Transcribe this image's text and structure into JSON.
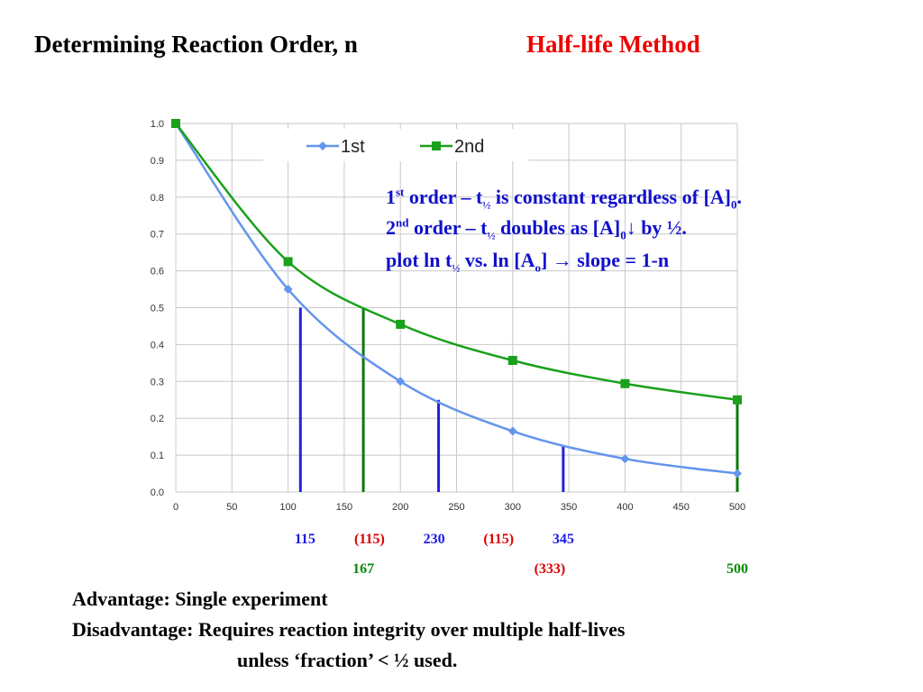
{
  "header": {
    "title": "Determining Reaction Order, n",
    "method": "Half-life Method"
  },
  "notes": {
    "line1": {
      "pre": "1",
      "sup": "st",
      "mid": " order – t",
      "half": "½",
      "post": " is constant regardless of [A]",
      "sub": "0",
      "end": "."
    },
    "line2": {
      "pre": "2",
      "sup": "nd",
      "mid": " order – t",
      "half": "½",
      "post": " doubles as [A]",
      "sub": "0",
      "end": "↓ by ½."
    },
    "line3": {
      "pre": "plot ln t",
      "half": "½",
      "mid": " vs. ln [A",
      "sub": "o",
      "post": "]  → slope = 1-n"
    }
  },
  "half_life_labels": {
    "first": [
      {
        "value": 115,
        "label": "115",
        "color": "blue"
      },
      {
        "value": 172.5,
        "label": "(115)",
        "color": "red"
      },
      {
        "value": 230,
        "label": "230",
        "color": "blue"
      },
      {
        "value": 287.5,
        "label": "(115)",
        "color": "red"
      },
      {
        "value": 345,
        "label": "345",
        "color": "blue"
      }
    ],
    "second": [
      {
        "value": 167,
        "label": "167",
        "color": "green"
      },
      {
        "value": 333,
        "label": "(333)",
        "color": "red"
      },
      {
        "value": 500,
        "label": "500",
        "color": "green"
      }
    ]
  },
  "footer": {
    "advantage": "Advantage: Single experiment",
    "disadvantage": "Disadvantage: Requires reaction integrity over multiple half-lives",
    "disadvantage_cont": "unless ‘fraction’ < ½ used."
  },
  "chart_data": {
    "type": "line",
    "xlim": [
      0,
      500
    ],
    "ylim": [
      0,
      1.0
    ],
    "x_ticks": [
      0,
      50,
      100,
      150,
      200,
      250,
      300,
      350,
      400,
      450,
      500
    ],
    "y_ticks": [
      0.0,
      0.1,
      0.2,
      0.3,
      0.4,
      0.5,
      0.6,
      0.7,
      0.8,
      0.9,
      1.0
    ],
    "y_tick_labels": [
      "0.0",
      "0.1",
      "0.2",
      "0.3",
      "0.4",
      "0.5",
      "0.6",
      "0.7",
      "0.8",
      "0.9",
      "1.0"
    ],
    "grid": true,
    "legend_position": "top",
    "series": [
      {
        "name": "1st",
        "color": "#6495ed",
        "marker": "diamond",
        "x": [
          0,
          100,
          200,
          300,
          400,
          500
        ],
        "y": [
          1.0,
          0.55,
          0.3,
          0.165,
          0.09,
          0.05
        ]
      },
      {
        "name": "2nd",
        "color": "#1aa01a",
        "marker": "square",
        "x": [
          0,
          100,
          200,
          300,
          400,
          500
        ],
        "y": [
          1.0,
          0.625,
          0.455,
          0.357,
          0.294,
          0.25
        ]
      }
    ],
    "vlines": [
      {
        "x": 111,
        "y": 0.5,
        "color": "#2222dd"
      },
      {
        "x": 167,
        "y": 0.5,
        "color": "#0a7a0a"
      },
      {
        "x": 234,
        "y": 0.25,
        "color": "#2222dd"
      },
      {
        "x": 345,
        "y": 0.125,
        "color": "#2222dd"
      },
      {
        "x": 500,
        "y": 0.25,
        "color": "#0a7a0a"
      }
    ]
  }
}
